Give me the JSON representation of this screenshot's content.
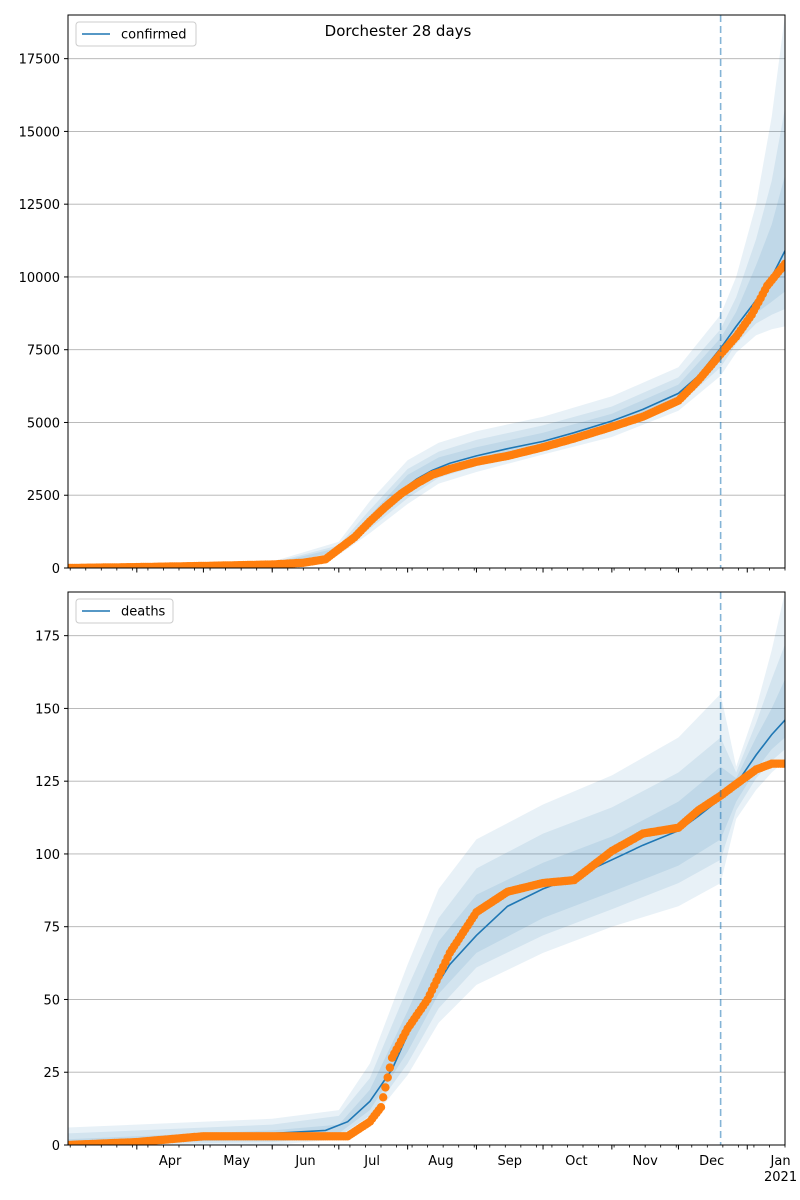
{
  "figure": {
    "title": "Dorchester 28 days"
  },
  "colors": {
    "model_line": "#1f77b4",
    "band": "#1f77b4",
    "observed": "#ff7f0e",
    "grid": "#b0b0b0",
    "vline": "#1f77b4"
  },
  "chart_data": [
    {
      "type": "line",
      "panel": "confirmed",
      "legend": {
        "label": "confirmed",
        "placement": "upper-left"
      },
      "ylim": [
        0,
        19000
      ],
      "yticks": [
        0,
        2500,
        5000,
        7500,
        10000,
        12500,
        15000,
        17500
      ],
      "grid": "y",
      "x_range": [
        "2020-03-01",
        "2021-01-18"
      ],
      "forecast_start": "2020-12-20",
      "series": [
        {
          "kind": "model",
          "x": [
            "2020-03-01",
            "2020-04-01",
            "2020-05-01",
            "2020-06-01",
            "2020-06-15",
            "2020-06-25",
            "2020-07-01",
            "2020-07-08",
            "2020-07-15",
            "2020-07-22",
            "2020-07-29",
            "2020-08-05",
            "2020-08-12",
            "2020-08-20",
            "2020-09-01",
            "2020-09-15",
            "2020-10-01",
            "2020-10-15",
            "2020-11-01",
            "2020-11-15",
            "2020-12-01",
            "2020-12-10",
            "2020-12-20",
            "2020-12-27",
            "2021-01-03",
            "2021-01-10",
            "2021-01-18"
          ],
          "values": [
            0,
            20,
            60,
            110,
            170,
            320,
            620,
            1100,
            1650,
            2200,
            2650,
            3050,
            3350,
            3600,
            3850,
            4100,
            4350,
            4650,
            5050,
            5450,
            6000,
            6600,
            7550,
            8300,
            9000,
            9700,
            10900
          ]
        },
        {
          "kind": "observed",
          "x": [
            "2020-03-01",
            "2020-04-01",
            "2020-05-01",
            "2020-06-01",
            "2020-06-15",
            "2020-06-25",
            "2020-07-01",
            "2020-07-08",
            "2020-07-15",
            "2020-07-22",
            "2020-07-29",
            "2020-08-05",
            "2020-08-12",
            "2020-08-20",
            "2020-09-01",
            "2020-09-15",
            "2020-10-01",
            "2020-10-15",
            "2020-11-01",
            "2020-11-15",
            "2020-12-01",
            "2020-12-10",
            "2020-12-20",
            "2020-12-27",
            "2021-01-03",
            "2021-01-10",
            "2021-01-18"
          ],
          "values": [
            0,
            30,
            70,
            120,
            180,
            300,
            650,
            1050,
            1600,
            2100,
            2550,
            2900,
            3200,
            3400,
            3650,
            3850,
            4150,
            4450,
            4850,
            5200,
            5750,
            6450,
            7350,
            7950,
            8700,
            9700,
            10450
          ]
        }
      ],
      "bands": [
        {
          "x": [
            "2020-03-01",
            "2020-06-01",
            "2020-07-01",
            "2020-07-15",
            "2020-08-01",
            "2020-08-15",
            "2020-09-01",
            "2020-10-01",
            "2020-11-01",
            "2020-12-01",
            "2020-12-20",
            "2020-12-27",
            "2021-01-05",
            "2021-01-12",
            "2021-01-18"
          ],
          "low": [
            0,
            50,
            450,
            1200,
            2200,
            2900,
            3300,
            3900,
            4500,
            5400,
            6600,
            7400,
            8000,
            8200,
            8300
          ],
          "high": [
            60,
            220,
            900,
            2300,
            3700,
            4300,
            4700,
            5200,
            5900,
            6900,
            8700,
            10000,
            12500,
            15500,
            19000
          ]
        },
        {
          "x": [
            "2020-03-01",
            "2020-06-01",
            "2020-07-01",
            "2020-07-15",
            "2020-08-01",
            "2020-08-15",
            "2020-09-01",
            "2020-10-01",
            "2020-11-01",
            "2020-12-01",
            "2020-12-20",
            "2020-12-27",
            "2021-01-05",
            "2021-01-12",
            "2021-01-18"
          ],
          "low": [
            0,
            70,
            520,
            1350,
            2400,
            3100,
            3500,
            4050,
            4700,
            5600,
            6900,
            7700,
            8400,
            8700,
            8900
          ],
          "high": [
            40,
            180,
            780,
            2000,
            3400,
            4000,
            4400,
            4900,
            5550,
            6550,
            8200,
            9300,
            11300,
            13300,
            15800
          ]
        },
        {
          "x": [
            "2020-03-01",
            "2020-06-01",
            "2020-07-01",
            "2020-07-15",
            "2020-08-01",
            "2020-08-15",
            "2020-09-01",
            "2020-10-01",
            "2020-11-01",
            "2020-12-01",
            "2020-12-20",
            "2020-12-27",
            "2021-01-05",
            "2021-01-12",
            "2021-01-18"
          ],
          "low": [
            0,
            85,
            570,
            1450,
            2550,
            3250,
            3650,
            4200,
            4850,
            5750,
            7150,
            7950,
            8750,
            9150,
            9500
          ],
          "high": [
            25,
            150,
            700,
            1800,
            3200,
            3800,
            4150,
            4650,
            5300,
            6300,
            7900,
            8800,
            10400,
            11800,
            13500
          ]
        }
      ]
    },
    {
      "type": "line",
      "panel": "deaths",
      "legend": {
        "label": "deaths",
        "placement": "upper-left"
      },
      "ylim": [
        0,
        190
      ],
      "yticks": [
        0,
        25,
        50,
        75,
        100,
        125,
        150,
        175
      ],
      "grid": "y",
      "x_range": [
        "2020-03-01",
        "2021-01-18"
      ],
      "xtick_labels": [
        "Apr",
        "May",
        "Jun",
        "Jul",
        "Aug",
        "Sep",
        "Oct",
        "Nov",
        "Dec",
        "Jan\n2021"
      ],
      "forecast_start": "2020-12-20",
      "series": [
        {
          "kind": "model",
          "x": [
            "2020-03-01",
            "2020-04-01",
            "2020-05-01",
            "2020-06-01",
            "2020-06-25",
            "2020-07-05",
            "2020-07-15",
            "2020-07-25",
            "2020-08-01",
            "2020-08-10",
            "2020-08-20",
            "2020-09-01",
            "2020-09-15",
            "2020-10-01",
            "2020-10-15",
            "2020-11-01",
            "2020-11-15",
            "2020-12-01",
            "2020-12-10",
            "2020-12-20",
            "2020-12-27",
            "2021-01-05",
            "2021-01-12",
            "2021-01-18"
          ],
          "values": [
            0,
            1,
            3,
            4,
            5,
            8,
            15,
            26,
            38,
            50,
            62,
            72,
            82,
            88,
            92,
            98,
            103,
            108,
            113,
            119,
            124,
            134,
            141,
            146
          ]
        },
        {
          "kind": "observed",
          "x": [
            "2020-03-01",
            "2020-04-01",
            "2020-05-01",
            "2020-06-01",
            "2020-06-25",
            "2020-07-05",
            "2020-07-15",
            "2020-07-20",
            "2020-07-25",
            "2020-08-01",
            "2020-08-10",
            "2020-08-20",
            "2020-09-01",
            "2020-09-15",
            "2020-10-01",
            "2020-10-15",
            "2020-11-01",
            "2020-11-15",
            "2020-12-01",
            "2020-12-10",
            "2020-12-20",
            "2020-12-27",
            "2021-01-05",
            "2021-01-12",
            "2021-01-18"
          ],
          "values": [
            0,
            1,
            3,
            3,
            3,
            3,
            8,
            13,
            30,
            40,
            50,
            66,
            80,
            87,
            90,
            91,
            101,
            107,
            109,
            115,
            120,
            124,
            129,
            131,
            131
          ]
        }
      ],
      "bands": [
        {
          "x": [
            "2020-03-01",
            "2020-06-01",
            "2020-07-01",
            "2020-07-15",
            "2020-08-01",
            "2020-08-15",
            "2020-09-01",
            "2020-10-01",
            "2020-11-01",
            "2020-12-01",
            "2020-12-20",
            "2020-12-27",
            "2021-01-05",
            "2021-01-12",
            "2021-01-18"
          ],
          "low": [
            0,
            0,
            2,
            8,
            24,
            42,
            55,
            66,
            75,
            82,
            90,
            112,
            122,
            128,
            132
          ],
          "high": [
            6,
            9,
            12,
            28,
            62,
            88,
            105,
            117,
            127,
            140,
            155,
            130,
            150,
            170,
            190
          ]
        },
        {
          "x": [
            "2020-03-01",
            "2020-06-01",
            "2020-07-01",
            "2020-07-15",
            "2020-08-01",
            "2020-08-15",
            "2020-09-01",
            "2020-10-01",
            "2020-11-01",
            "2020-12-01",
            "2020-12-20",
            "2020-12-27",
            "2021-01-05",
            "2021-01-12",
            "2021-01-18"
          ],
          "low": [
            0,
            1,
            3,
            10,
            28,
            47,
            61,
            72,
            81,
            90,
            98,
            115,
            126,
            132,
            136
          ],
          "high": [
            4,
            7,
            10,
            23,
            54,
            78,
            95,
            107,
            116,
            128,
            140,
            128,
            145,
            160,
            172
          ]
        },
        {
          "x": [
            "2020-03-01",
            "2020-06-01",
            "2020-07-01",
            "2020-07-15",
            "2020-08-01",
            "2020-08-15",
            "2020-09-01",
            "2020-10-01",
            "2020-11-01",
            "2020-12-01",
            "2020-12-20",
            "2020-12-27",
            "2021-01-05",
            "2021-01-12",
            "2021-01-18"
          ],
          "low": [
            0,
            2,
            4,
            12,
            32,
            52,
            66,
            78,
            87,
            96,
            105,
            118,
            129,
            136,
            140
          ],
          "high": [
            2,
            5,
            7,
            19,
            46,
            70,
            86,
            97,
            106,
            118,
            130,
            126,
            140,
            150,
            160
          ]
        }
      ]
    }
  ]
}
